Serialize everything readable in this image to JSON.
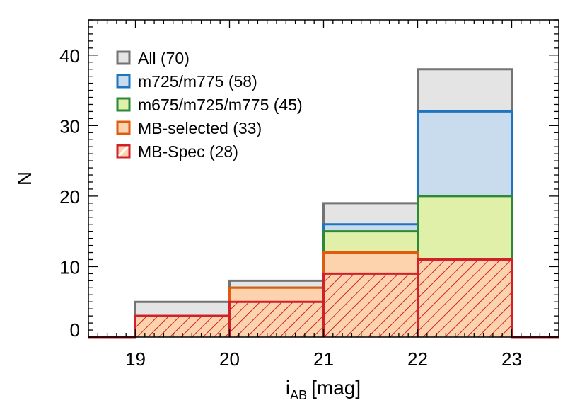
{
  "chart_data": {
    "type": "bar",
    "subtype": "stacked-overlay histogram (step)",
    "xlabel": "i",
    "xlabel_sub": "AB",
    "xlabel_unit": "[mag]",
    "ylabel": "N",
    "xlim": [
      18.5,
      23.5
    ],
    "ylim": [
      0,
      45
    ],
    "xticks": [
      19,
      20,
      21,
      22,
      23
    ],
    "yticks": [
      0,
      10,
      20,
      30,
      40
    ],
    "grid": false,
    "legend_position": "top-left",
    "bin_edges": [
      19,
      20,
      21,
      22,
      23
    ],
    "series": [
      {
        "name": "All (70)",
        "values": [
          5,
          8,
          19,
          38
        ],
        "edge_color": "#737373",
        "fill_color": "#e4e4e4"
      },
      {
        "name": "m725/m775 (58)",
        "values": [
          3,
          7,
          16,
          32
        ],
        "edge_color": "#1f74c0",
        "fill_color": "#c9dcee"
      },
      {
        "name": "m675/m725/m775 (45)",
        "values": [
          3,
          7,
          15,
          20
        ],
        "edge_color": "#2a8a3a",
        "fill_color": "#e0f0a8"
      },
      {
        "name": "MB-selected (33)",
        "values": [
          3,
          7,
          12,
          11
        ],
        "edge_color": "#e05a10",
        "fill_color": "#fdd3ad"
      },
      {
        "name": "MB-Spec (28)",
        "values": [
          3,
          5,
          9,
          11
        ],
        "edge_color": "#d0202a",
        "fill_color": "#fdd3ad",
        "hatch": true
      }
    ]
  }
}
